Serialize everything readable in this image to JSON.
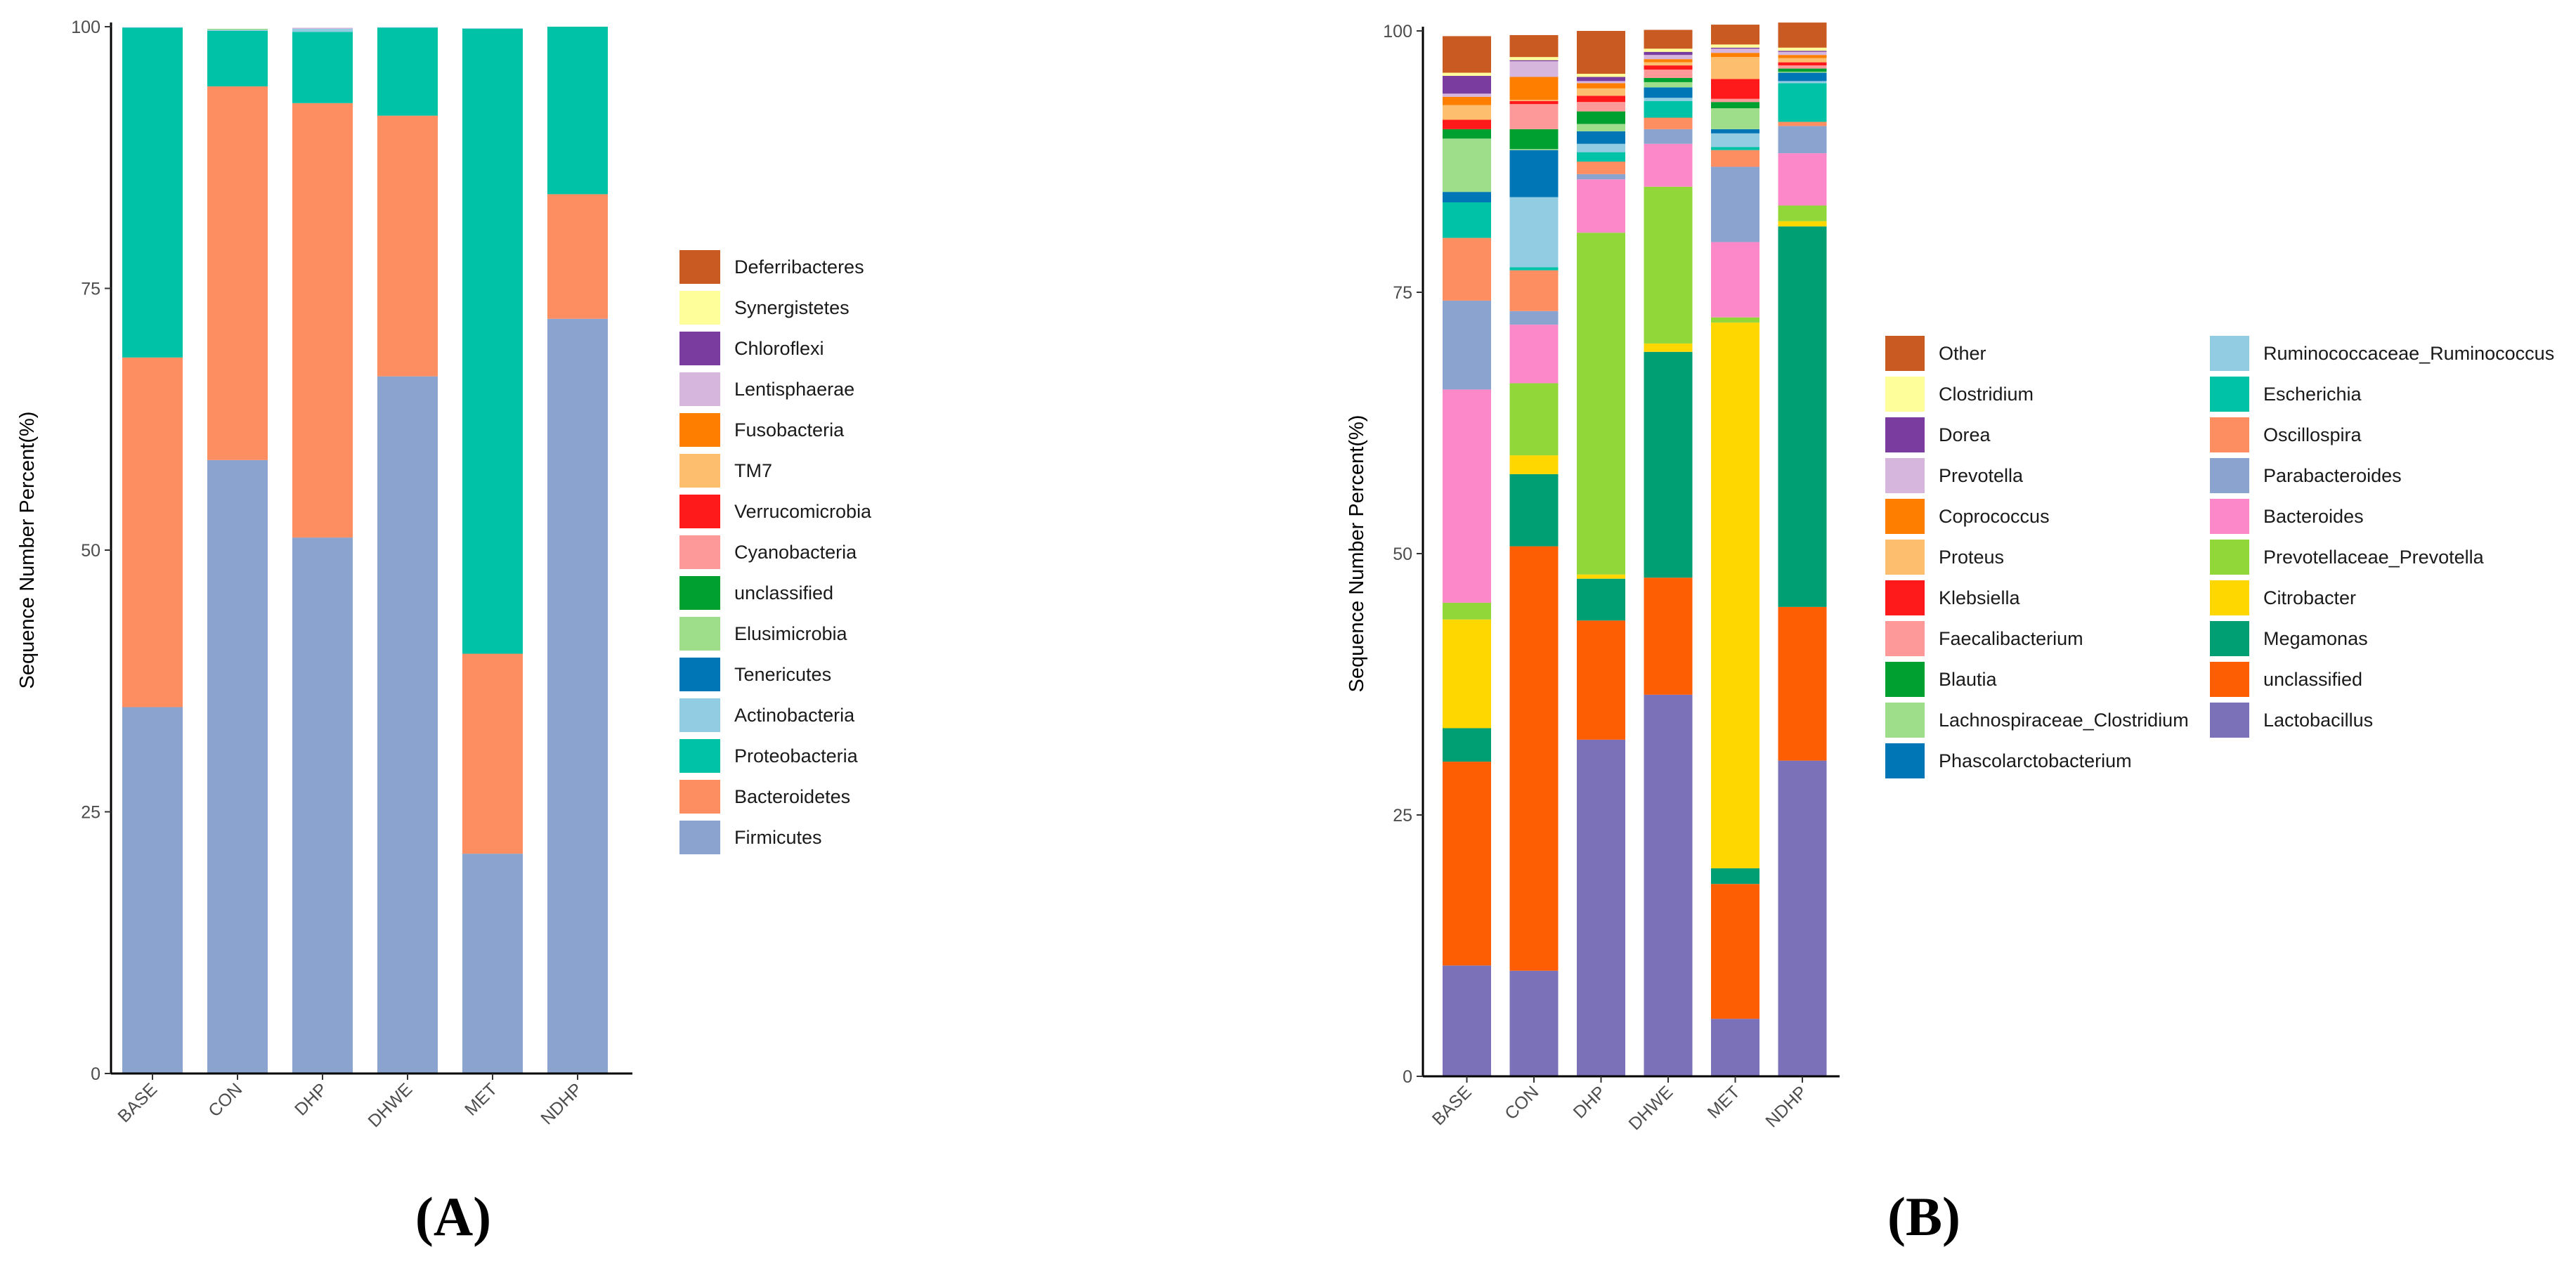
{
  "chart_data": [
    {
      "type": "bar",
      "stacked": true,
      "panel_label": "(A)",
      "title": "",
      "xlabel": "",
      "ylabel": "Sequence Number Percent(%)",
      "ylim": [
        0,
        100
      ],
      "yticks": [
        0,
        25,
        50,
        75,
        100
      ],
      "categories": [
        "BASE",
        "CON",
        "DHP",
        "DHWE",
        "MET",
        "NDHP"
      ],
      "legend_position": "right",
      "series": [
        {
          "name": "Firmicutes",
          "color": "#8aa4cf",
          "values": [
            35.0,
            58.6,
            51.2,
            66.6,
            21.0,
            72.1
          ]
        },
        {
          "name": "Bacteroidetes",
          "color": "#fd8e62",
          "values": [
            33.4,
            35.7,
            41.5,
            24.9,
            19.1,
            11.9
          ]
        },
        {
          "name": "Proteobacteria",
          "color": "#00c2a7",
          "values": [
            31.5,
            5.3,
            6.8,
            8.4,
            59.7,
            16.0
          ]
        },
        {
          "name": "Actinobacteria",
          "color": "#91cce3",
          "values": [
            0.05,
            0.1,
            0.3,
            0.05,
            0.05,
            0.0
          ]
        },
        {
          "name": "Tenericutes",
          "color": "#0076b6",
          "values": [
            0.0,
            0.0,
            0.0,
            0.0,
            0.0,
            0.0
          ]
        },
        {
          "name": "Elusimicrobia",
          "color": "#9ede8b",
          "values": [
            0.0,
            0.1,
            0.0,
            0.0,
            0.0,
            0.0
          ]
        },
        {
          "name": "unclassified",
          "color": "#00a030",
          "values": [
            0.0,
            0.0,
            0.0,
            0.0,
            0.0,
            0.0
          ]
        },
        {
          "name": "Cyanobacteria",
          "color": "#fd9999",
          "values": [
            0.0,
            0.0,
            0.0,
            0.0,
            0.0,
            0.0
          ]
        },
        {
          "name": "Verrucomicrobia",
          "color": "#fe1a1a",
          "values": [
            0.0,
            0.0,
            0.0,
            0.0,
            0.0,
            0.0
          ]
        },
        {
          "name": "TM7",
          "color": "#fdbf6e",
          "values": [
            0.0,
            0.0,
            0.0,
            0.0,
            0.0,
            0.0
          ]
        },
        {
          "name": "Fusobacteria",
          "color": "#fe7f00",
          "values": [
            0.0,
            0.0,
            0.0,
            0.0,
            0.0,
            0.0
          ]
        },
        {
          "name": "Lentisphaerae",
          "color": "#d7b6dd",
          "values": [
            0.0,
            0.0,
            0.1,
            0.0,
            0.0,
            0.0
          ]
        },
        {
          "name": "Chloroflexi",
          "color": "#7a3c9f",
          "values": [
            0.0,
            0.0,
            0.0,
            0.0,
            0.0,
            0.0
          ]
        },
        {
          "name": "Synergistetes",
          "color": "#fefe9a",
          "values": [
            0.0,
            0.0,
            0.0,
            0.0,
            0.0,
            0.0
          ]
        },
        {
          "name": "Deferribacteres",
          "color": "#c85a22",
          "values": [
            0.0,
            0.0,
            0.0,
            0.0,
            0.0,
            0.0
          ]
        }
      ]
    },
    {
      "type": "bar",
      "stacked": true,
      "panel_label": "(B)",
      "title": "",
      "xlabel": "",
      "ylabel": "Sequence Number Percent(%)",
      "ylim": [
        0,
        100
      ],
      "yticks": [
        0,
        25,
        50,
        75,
        100
      ],
      "categories": [
        "BASE",
        "CON",
        "DHP",
        "DHWE",
        "MET",
        "NDHP"
      ],
      "legend_position": "right",
      "series": [
        {
          "name": "Lactobacillus",
          "color": "#7a71b8",
          "values": [
            10.6,
            10.1,
            32.2,
            36.5,
            5.5,
            30.2
          ]
        },
        {
          "name": "unclassified",
          "color": "#fd5e04",
          "values": [
            19.5,
            40.6,
            11.4,
            11.2,
            12.9,
            14.7
          ]
        },
        {
          "name": "Megamonas",
          "color": "#009e73",
          "values": [
            3.2,
            6.9,
            4.0,
            21.6,
            1.5,
            36.4
          ]
        },
        {
          "name": "Citrobacter",
          "color": "#fed600",
          "values": [
            10.4,
            1.8,
            0.4,
            0.8,
            52.2,
            0.5
          ]
        },
        {
          "name": "Prevotellaceae_Prevotella",
          "color": "#92d73a",
          "values": [
            1.6,
            6.9,
            32.7,
            15.0,
            0.5,
            1.5
          ]
        },
        {
          "name": "Bacteroides",
          "color": "#fd88c9",
          "values": [
            20.4,
            5.6,
            5.1,
            4.1,
            7.2,
            5.0
          ]
        },
        {
          "name": "Parabacteroides",
          "color": "#8aa4cf",
          "values": [
            8.5,
            1.3,
            0.5,
            1.4,
            7.2,
            2.6
          ]
        },
        {
          "name": "Oscillospira",
          "color": "#fd8e62",
          "values": [
            6.0,
            3.9,
            1.2,
            1.1,
            1.6,
            0.4
          ]
        },
        {
          "name": "Escherichia",
          "color": "#00c2a7",
          "values": [
            3.4,
            0.3,
            0.9,
            1.6,
            0.3,
            3.7
          ]
        },
        {
          "name": "Ruminococcaceae_Ruminococcus",
          "color": "#91cce3",
          "values": [
            0.0,
            6.7,
            0.8,
            0.3,
            1.3,
            0.2
          ]
        },
        {
          "name": "Phascolarctobacterium",
          "color": "#0076b6",
          "values": [
            1.0,
            4.5,
            1.2,
            1.0,
            0.4,
            0.8
          ]
        },
        {
          "name": "Lachnospiraceae_Clostridium",
          "color": "#9ede8b",
          "values": [
            5.1,
            0.1,
            0.7,
            0.5,
            2.0,
            0.1
          ]
        },
        {
          "name": "Blautia",
          "color": "#00a030",
          "values": [
            0.9,
            1.9,
            1.2,
            0.4,
            0.6,
            0.3
          ]
        },
        {
          "name": "Faecalibacterium",
          "color": "#fd9999",
          "values": [
            0.0,
            2.4,
            0.9,
            0.8,
            0.3,
            0.3
          ]
        },
        {
          "name": "Klebsiella",
          "color": "#fe1a1a",
          "values": [
            0.9,
            0.3,
            0.6,
            0.4,
            1.9,
            0.3
          ]
        },
        {
          "name": "Proteus",
          "color": "#fdbf6e",
          "values": [
            1.4,
            0.1,
            0.7,
            0.3,
            2.1,
            0.4
          ]
        },
        {
          "name": "Coprococcus",
          "color": "#fe7f00",
          "values": [
            0.8,
            2.2,
            0.5,
            0.3,
            0.4,
            0.3
          ]
        },
        {
          "name": "Prevotella",
          "color": "#d7b6dd",
          "values": [
            0.3,
            1.5,
            0.2,
            0.4,
            0.4,
            0.3
          ]
        },
        {
          "name": "Dorea",
          "color": "#7a3c9f",
          "values": [
            1.7,
            0.1,
            0.4,
            0.3,
            0.1,
            0.1
          ]
        },
        {
          "name": "Clostridium",
          "color": "#fefe9a",
          "values": [
            0.3,
            0.3,
            0.3,
            0.3,
            0.3,
            0.3
          ]
        },
        {
          "name": "Other",
          "color": "#c85a22",
          "values": [
            3.5,
            2.1,
            4.1,
            1.8,
            1.9,
            2.4
          ]
        }
      ]
    }
  ]
}
